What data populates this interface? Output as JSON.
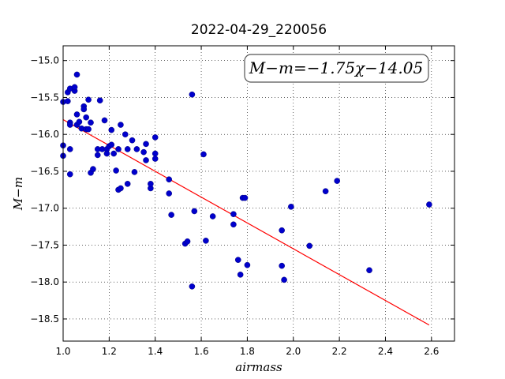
{
  "chart_data": {
    "type": "scatter",
    "title": "2022-04-29_220056",
    "xlabel": "airmass",
    "ylabel": "M−m",
    "xlim": [
      1.0,
      2.7
    ],
    "ylim": [
      -18.8,
      -14.8
    ],
    "grid": true,
    "x_ticks": [
      "1.0",
      "1.2",
      "1.4",
      "1.6",
      "1.8",
      "2.0",
      "2.2",
      "2.4",
      "2.6"
    ],
    "y_ticks": [
      "−15.0",
      "−15.5",
      "−16.0",
      "−16.5",
      "−17.0",
      "−17.5",
      "−18.0",
      "−18.5"
    ],
    "annotation": "M−m=−1.75χ−14.05",
    "fit": {
      "slope": -1.75,
      "intercept": -14.05,
      "x_range": [
        1.0,
        2.59
      ],
      "color": "#ff0000"
    },
    "point_color": "#0000cc",
    "points": [
      [
        1.0,
        -15.56
      ],
      [
        1.0,
        -16.15
      ],
      [
        1.0,
        -16.29
      ],
      [
        1.02,
        -15.43
      ],
      [
        1.02,
        -15.55
      ],
      [
        1.03,
        -15.38
      ],
      [
        1.03,
        -15.84
      ],
      [
        1.03,
        -15.87
      ],
      [
        1.03,
        -16.2
      ],
      [
        1.03,
        -16.54
      ],
      [
        1.05,
        -15.41
      ],
      [
        1.05,
        -15.36
      ],
      [
        1.06,
        -15.19
      ],
      [
        1.06,
        -15.73
      ],
      [
        1.06,
        -15.87
      ],
      [
        1.07,
        -15.83
      ],
      [
        1.08,
        -15.92
      ],
      [
        1.09,
        -15.62
      ],
      [
        1.09,
        -15.66
      ],
      [
        1.1,
        -15.77
      ],
      [
        1.1,
        -15.93
      ],
      [
        1.11,
        -15.53
      ],
      [
        1.11,
        -15.93
      ],
      [
        1.12,
        -16.52
      ],
      [
        1.12,
        -15.84
      ],
      [
        1.13,
        -16.47
      ],
      [
        1.15,
        -16.2
      ],
      [
        1.15,
        -16.28
      ],
      [
        1.16,
        -15.54
      ],
      [
        1.17,
        -16.2
      ],
      [
        1.18,
        -15.81
      ],
      [
        1.19,
        -16.2
      ],
      [
        1.19,
        -16.26
      ],
      [
        1.2,
        -16.16
      ],
      [
        1.21,
        -15.94
      ],
      [
        1.21,
        -16.14
      ],
      [
        1.22,
        -16.26
      ],
      [
        1.23,
        -16.49
      ],
      [
        1.24,
        -16.75
      ],
      [
        1.24,
        -16.2
      ],
      [
        1.25,
        -15.87
      ],
      [
        1.25,
        -16.73
      ],
      [
        1.27,
        -16.0
      ],
      [
        1.28,
        -16.2
      ],
      [
        1.28,
        -16.67
      ],
      [
        1.3,
        -16.08
      ],
      [
        1.31,
        -16.51
      ],
      [
        1.32,
        -16.2
      ],
      [
        1.35,
        -16.24
      ],
      [
        1.36,
        -16.13
      ],
      [
        1.36,
        -16.35
      ],
      [
        1.38,
        -16.73
      ],
      [
        1.38,
        -16.67
      ],
      [
        1.4,
        -16.26
      ],
      [
        1.4,
        -16.33
      ],
      [
        1.4,
        -16.04
      ],
      [
        1.46,
        -16.61
      ],
      [
        1.46,
        -16.8
      ],
      [
        1.47,
        -17.09
      ],
      [
        1.53,
        -17.48
      ],
      [
        1.54,
        -17.45
      ],
      [
        1.56,
        -15.46
      ],
      [
        1.56,
        -18.06
      ],
      [
        1.57,
        -17.04
      ],
      [
        1.61,
        -16.27
      ],
      [
        1.62,
        -17.44
      ],
      [
        1.65,
        -17.11
      ],
      [
        1.74,
        -17.08
      ],
      [
        1.74,
        -17.22
      ],
      [
        1.76,
        -17.7
      ],
      [
        1.77,
        -17.9
      ],
      [
        1.78,
        -16.86
      ],
      [
        1.79,
        -16.86
      ],
      [
        1.8,
        -17.77
      ],
      [
        1.95,
        -17.3
      ],
      [
        1.95,
        -17.78
      ],
      [
        1.96,
        -17.97
      ],
      [
        1.99,
        -16.98
      ],
      [
        2.07,
        -17.51
      ],
      [
        2.14,
        -16.77
      ],
      [
        2.19,
        -16.63
      ],
      [
        2.33,
        -17.84
      ],
      [
        2.59,
        -16.95
      ]
    ]
  }
}
